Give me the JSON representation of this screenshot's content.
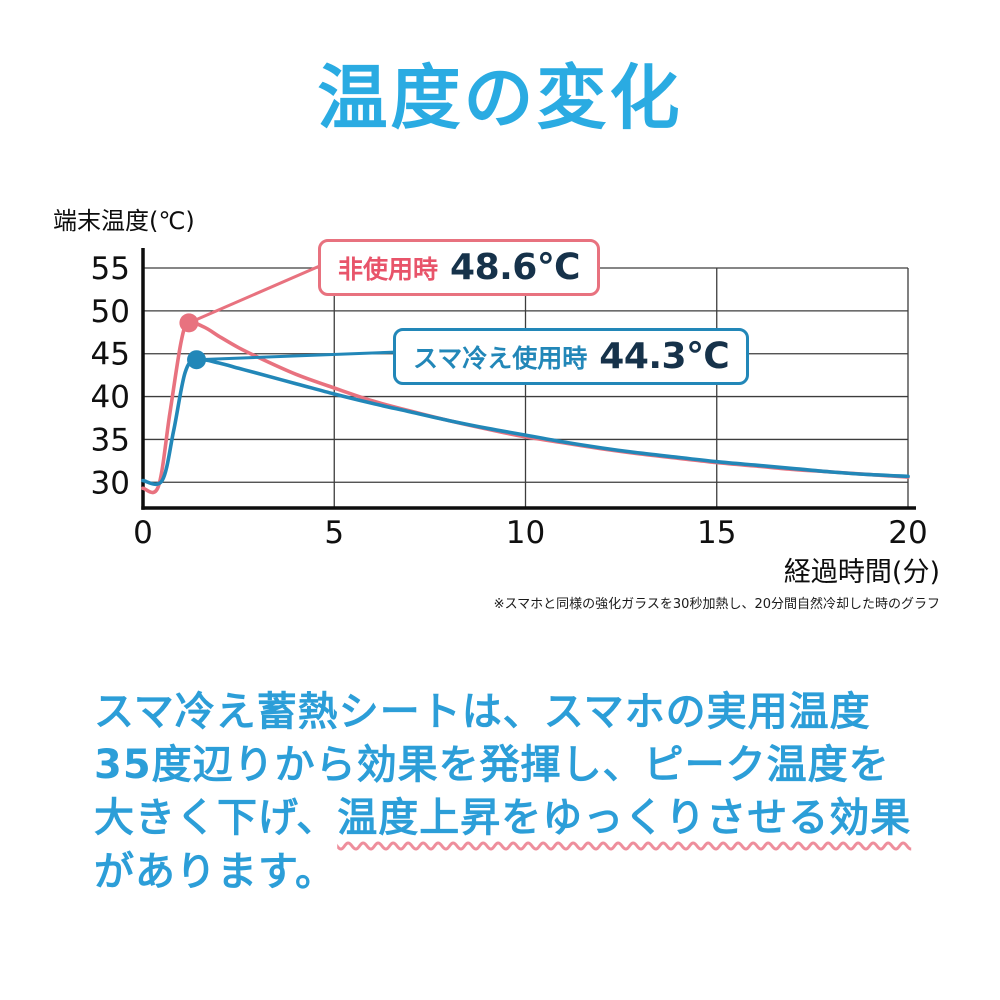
{
  "title": "温度の変化",
  "colors": {
    "accent_blue": "#2aabe2",
    "body_text_blue": "#2c9ed8",
    "line_pink": "#e8727f",
    "line_blue": "#2287b8",
    "value_dark": "#16324a",
    "wavy_pink": "#ee8e9c"
  },
  "chart_data": {
    "type": "line",
    "title": "温度の変化",
    "xlabel": "経過時間(分)",
    "ylabel": "端末温度(℃)",
    "xlim": [
      0,
      20
    ],
    "ylim": [
      27,
      55
    ],
    "xticks": [
      0,
      5,
      10,
      15,
      20
    ],
    "yticks": [
      30,
      35,
      40,
      45,
      50,
      55
    ],
    "grid": true,
    "legend_position": "callouts-on-plot",
    "series": [
      {
        "name": "非使用時",
        "color": "#e8727f",
        "peak": {
          "x": 1.2,
          "y": 48.6
        },
        "points": [
          [
            0,
            29.3
          ],
          [
            0.4,
            29.5
          ],
          [
            0.7,
            38.0
          ],
          [
            1.0,
            46.5
          ],
          [
            1.2,
            48.6
          ],
          [
            1.6,
            48.1
          ],
          [
            2,
            47.0
          ],
          [
            2.5,
            45.7
          ],
          [
            3,
            44.6
          ],
          [
            4,
            42.6
          ],
          [
            5,
            41.0
          ],
          [
            6,
            39.5
          ],
          [
            7,
            38.3
          ],
          [
            8,
            37.2
          ],
          [
            9,
            36.2
          ],
          [
            10,
            35.3
          ],
          [
            11,
            34.6
          ],
          [
            12,
            33.9
          ],
          [
            13,
            33.3
          ],
          [
            14,
            32.8
          ],
          [
            15,
            32.3
          ],
          [
            16,
            31.9
          ],
          [
            17,
            31.5
          ],
          [
            18,
            31.2
          ],
          [
            19,
            30.9
          ],
          [
            20,
            30.6
          ]
        ]
      },
      {
        "name": "スマ冷え使用時",
        "color": "#2287b8",
        "peak": {
          "x": 1.4,
          "y": 44.3
        },
        "points": [
          [
            0,
            30.2
          ],
          [
            0.5,
            30.2
          ],
          [
            0.8,
            36.0
          ],
          [
            1.1,
            42.8
          ],
          [
            1.4,
            44.3
          ],
          [
            2,
            43.9
          ],
          [
            2.5,
            43.3
          ],
          [
            3,
            42.7
          ],
          [
            4,
            41.5
          ],
          [
            5,
            40.3
          ],
          [
            6,
            39.2
          ],
          [
            7,
            38.2
          ],
          [
            8,
            37.2
          ],
          [
            9,
            36.3
          ],
          [
            10,
            35.5
          ],
          [
            11,
            34.7
          ],
          [
            12,
            34.0
          ],
          [
            13,
            33.4
          ],
          [
            14,
            32.9
          ],
          [
            15,
            32.4
          ],
          [
            16,
            32.0
          ],
          [
            17,
            31.6
          ],
          [
            18,
            31.2
          ],
          [
            19,
            30.9
          ],
          [
            20,
            30.7
          ]
        ]
      }
    ]
  },
  "callouts": [
    {
      "label": "非使用時",
      "value": "48.6℃"
    },
    {
      "label": "スマ冷え使用時",
      "value": "44.3℃"
    }
  ],
  "footnote": "※スマホと同様の強化ガラスを30秒加熱し、20分間自然冷却した時のグラフ",
  "description": {
    "line1": "スマ冷え蓄熱シートは、スマホの実用温度",
    "line2": "35度辺りから効果を発揮し、ピーク温度を",
    "line3_plain": "大きく下げ、",
    "line3_wavy": "温度上昇をゆっくりさせる効果",
    "line4": "があります。"
  }
}
